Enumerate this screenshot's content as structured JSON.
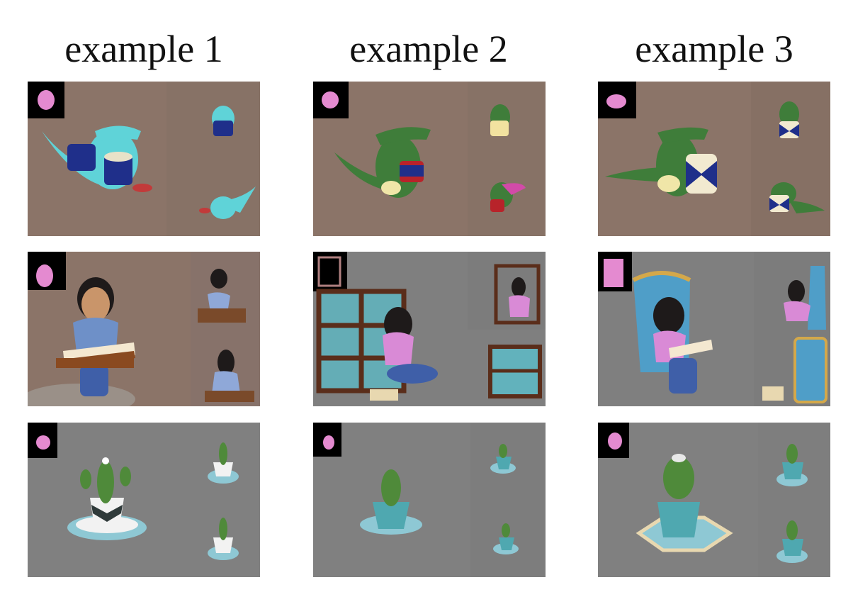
{
  "columns": [
    {
      "title": "example 1"
    },
    {
      "title": "example 2"
    },
    {
      "title": "example 3"
    }
  ],
  "rows": [
    {
      "subject": "alligator playing drums",
      "background": "#8b7468"
    },
    {
      "subject": "girl reading a book",
      "background": "#7f7f7f"
    },
    {
      "subject": "cactus in a pot",
      "background": "#808080"
    }
  ],
  "colors": {
    "alligator_blue": "#5fd3d8",
    "alligator_green": "#3f7d3a",
    "drum_blue": "#1f2f8a",
    "drum_red": "#b8232a",
    "shirt_pink": "#d98ad6",
    "jeans": "#3f5fa8",
    "shelf_brown": "#5a2d1a",
    "pot_teal": "#4fa8b0",
    "cactus_green": "#4f8a3a",
    "inset_black": "#000000"
  }
}
